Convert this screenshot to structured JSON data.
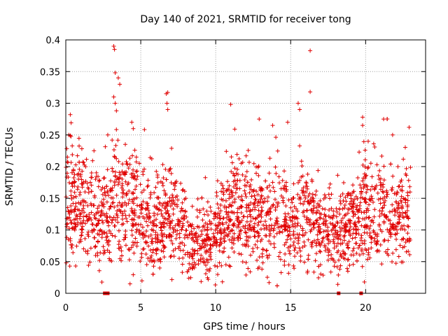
{
  "chart_data": {
    "type": "scatter",
    "title": "Day 140 of 2021, SRMTID for receiver tong",
    "xlabel": "GPS time / hours",
    "ylabel": "SRMTID / TECUs",
    "xlim": [
      0,
      24
    ],
    "ylim": [
      0,
      0.4
    ],
    "x_ticks": [
      0,
      5,
      10,
      15,
      20
    ],
    "x_tick_labels": [
      "0",
      "5",
      "10",
      "15",
      "20"
    ],
    "y_ticks": [
      0,
      0.05,
      0.1,
      0.15,
      0.2,
      0.25,
      0.3,
      0.35,
      0.4
    ],
    "y_tick_labels": [
      "0",
      "0.05",
      "0.1",
      "0.15",
      "0.2",
      "0.25",
      "0.3",
      "0.35",
      "0.4"
    ],
    "grid": true,
    "marker": "+",
    "color": "#e00000",
    "data_span_hours": [
      0,
      23
    ],
    "baseline_markers_x": [
      2.6,
      2.8,
      18.2,
      19.7
    ],
    "mean_profile": [
      [
        0.0,
        0.15
      ],
      [
        1.0,
        0.14
      ],
      [
        2.0,
        0.12
      ],
      [
        2.8,
        0.115
      ],
      [
        3.3,
        0.16
      ],
      [
        4.0,
        0.14
      ],
      [
        5.0,
        0.12
      ],
      [
        6.0,
        0.11
      ],
      [
        7.0,
        0.12
      ],
      [
        8.0,
        0.09
      ],
      [
        9.0,
        0.075
      ],
      [
        10.0,
        0.095
      ],
      [
        11.0,
        0.13
      ],
      [
        12.0,
        0.12
      ],
      [
        13.0,
        0.115
      ],
      [
        14.0,
        0.125
      ],
      [
        15.0,
        0.105
      ],
      [
        16.0,
        0.13
      ],
      [
        17.0,
        0.105
      ],
      [
        18.0,
        0.095
      ],
      [
        19.0,
        0.1
      ],
      [
        20.0,
        0.14
      ],
      [
        21.0,
        0.14
      ],
      [
        22.0,
        0.11
      ],
      [
        23.0,
        0.13
      ]
    ],
    "highlights": [
      [
        3.2,
        0.39
      ],
      [
        3.25,
        0.385
      ],
      [
        3.3,
        0.348
      ],
      [
        3.5,
        0.34
      ],
      [
        3.6,
        0.33
      ],
      [
        3.2,
        0.31
      ],
      [
        3.3,
        0.3
      ],
      [
        6.7,
        0.315
      ],
      [
        6.8,
        0.317
      ],
      [
        6.75,
        0.3
      ],
      [
        6.8,
        0.29
      ],
      [
        11.0,
        0.298
      ],
      [
        16.3,
        0.383
      ],
      [
        16.3,
        0.318
      ],
      [
        15.5,
        0.3
      ],
      [
        15.6,
        0.29
      ],
      [
        19.8,
        0.278
      ],
      [
        19.8,
        0.265
      ],
      [
        21.2,
        0.275
      ],
      [
        4.4,
        0.27
      ],
      [
        4.5,
        0.26
      ],
      [
        22.9,
        0.262
      ],
      [
        0.3,
        0.282
      ],
      [
        0.2,
        0.25
      ],
      [
        12.9,
        0.275
      ],
      [
        14.8,
        0.27
      ],
      [
        13.8,
        0.265
      ],
      [
        21.8,
        0.25
      ],
      [
        2.8,
        0.25
      ]
    ]
  }
}
